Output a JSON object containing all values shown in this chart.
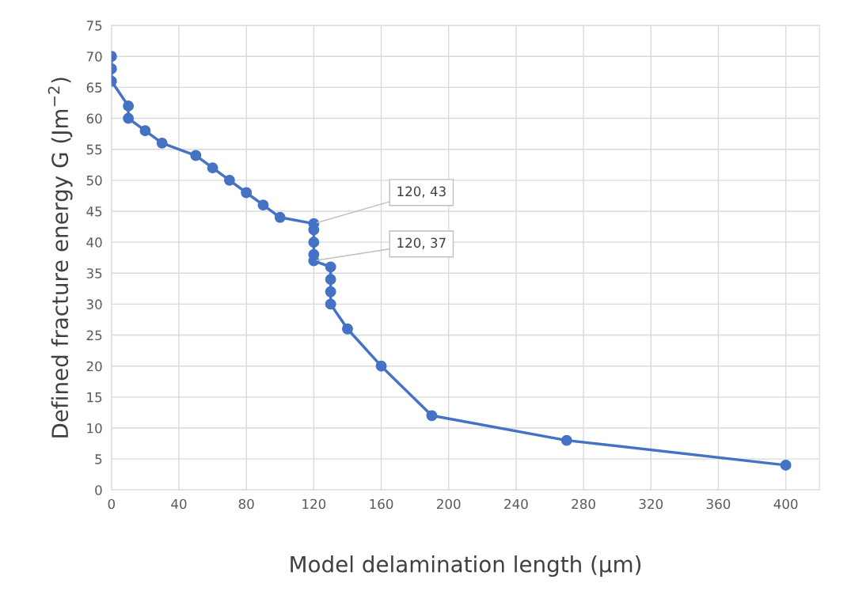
{
  "chart_data": {
    "type": "line",
    "xlabel": "Model delamination length (µm)",
    "ylabel": "Defined fracture energy G (Jm$^{−2}$)",
    "xlim": [
      0,
      420
    ],
    "xticks": [
      0,
      40,
      80,
      120,
      160,
      200,
      240,
      280,
      320,
      360,
      400
    ],
    "ylim": [
      0,
      75
    ],
    "yticks": [
      0,
      5,
      10,
      15,
      20,
      25,
      30,
      35,
      40,
      45,
      50,
      55,
      60,
      65,
      70,
      75
    ],
    "grid": true,
    "marker": "circle",
    "line_style": "solid",
    "series": [
      {
        "color": "#4472c4",
        "x": [
          0,
          0,
          0,
          10,
          10,
          20,
          30,
          50,
          60,
          70,
          80,
          90,
          100,
          120,
          120,
          120,
          120,
          120,
          130,
          130,
          130,
          130,
          140,
          160,
          190,
          270,
          400
        ],
        "values": [
          70,
          68,
          66,
          62,
          60,
          58,
          56,
          54,
          52,
          50,
          48,
          46,
          44,
          43,
          42,
          40,
          38,
          37,
          36,
          34,
          32,
          30,
          26,
          20,
          12,
          8,
          4
        ]
      }
    ],
    "annotations": [
      {
        "text": "120, 43",
        "x": 120,
        "y": 43
      },
      {
        "text": "120, 37",
        "x": 120,
        "y": 37
      }
    ]
  }
}
